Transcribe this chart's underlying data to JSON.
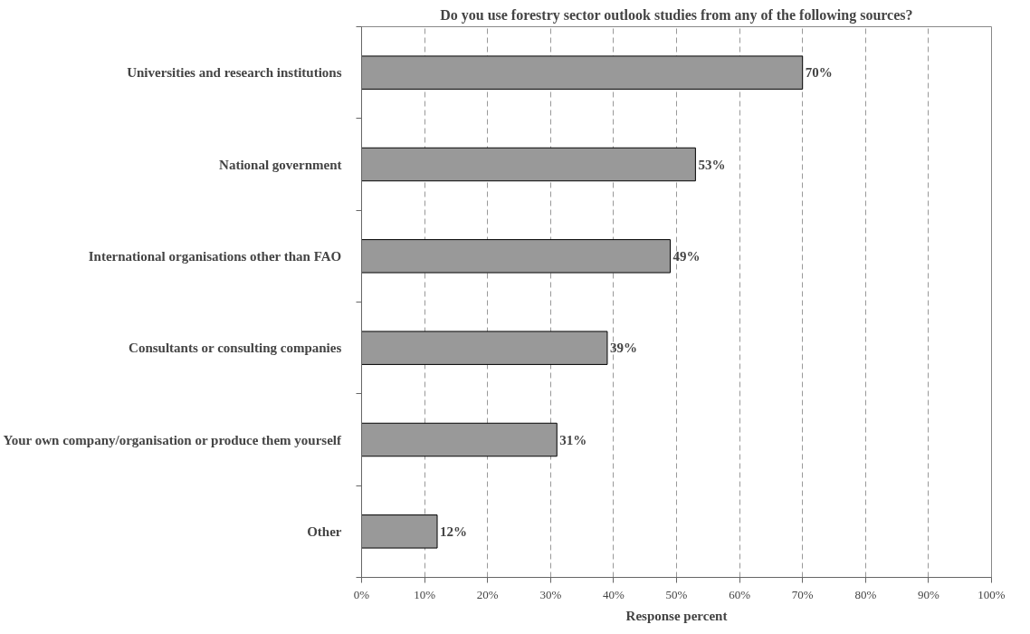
{
  "chart_data": {
    "type": "bar",
    "orientation": "horizontal",
    "title": "Do you use forestry sector outlook studies from any of the following sources?",
    "xlabel": "Response percent",
    "categories": [
      "Universities and research institutions",
      "National government",
      "International organisations other than FAO",
      "Consultants or consulting companies",
      "Your own company/organisation or produce them yourself",
      "Other"
    ],
    "values": [
      70,
      53,
      49,
      39,
      31,
      12
    ],
    "value_labels": [
      "70%",
      "53%",
      "49%",
      "39%",
      "31%",
      "12%"
    ],
    "color": "#999999",
    "grid": "x",
    "xlim": [
      0,
      100
    ],
    "xticks": [
      {
        "value": 0,
        "label": "0%"
      },
      {
        "value": 10,
        "label": "10%"
      },
      {
        "value": 20,
        "label": "20%"
      },
      {
        "value": 30,
        "label": "30%"
      },
      {
        "value": 40,
        "label": "40%"
      },
      {
        "value": 50,
        "label": "50%"
      },
      {
        "value": 60,
        "label": "60%"
      },
      {
        "value": 70,
        "label": "70%"
      },
      {
        "value": 80,
        "label": "80%"
      },
      {
        "value": 90,
        "label": "90%"
      },
      {
        "value": 100,
        "label": "100%"
      }
    ]
  }
}
